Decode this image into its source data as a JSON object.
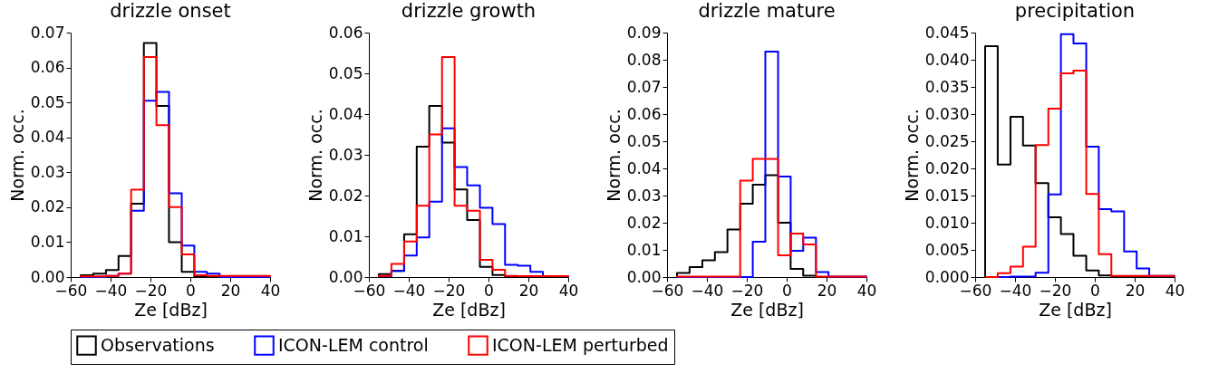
{
  "chart_data": [
    {
      "type": "histogram",
      "title": "drizzle onset",
      "xlabel": "Ze [dBz]",
      "ylabel": "Norm. occ.",
      "legend": "bottom",
      "grid": false,
      "bins": [
        -55,
        -48.7,
        -42.3,
        -36,
        -29.7,
        -23.3,
        -17,
        -10.7,
        -4.3,
        2,
        8.3,
        14.7,
        21,
        27.3,
        33.7,
        40
      ],
      "xlim": [
        -60,
        40
      ],
      "xticks": [
        {
          "value": -60,
          "label": "−60"
        },
        {
          "value": -40,
          "label": "−40"
        },
        {
          "value": -20,
          "label": "−20"
        },
        0,
        20,
        40
      ],
      "ylim": [
        0,
        0.07
      ],
      "yticks": [
        {
          "value": 0,
          "label": "0.00"
        },
        0.01,
        0.02,
        0.03,
        0.04,
        0.05,
        0.06,
        0.07
      ],
      "series": [
        {
          "name": "Observations",
          "color": "#000000",
          "values": [
            0.0005,
            0.001,
            0.002,
            0.006,
            0.021,
            0.067,
            0.049,
            0.01,
            0.0015,
            0,
            0,
            0,
            0,
            0,
            0
          ]
        },
        {
          "name": "ICON-LEM control",
          "color": "#0000ff",
          "values": [
            0,
            0,
            0.0003,
            0.001,
            0.019,
            0.0505,
            0.053,
            0.024,
            0.009,
            0.0015,
            0.001,
            0,
            0,
            0,
            0
          ]
        },
        {
          "name": "ICON-LEM perturbed",
          "color": "#ff0000",
          "values": [
            0.0002,
            0.0002,
            0.0003,
            0.001,
            0.025,
            0.063,
            0.0435,
            0.02,
            0.0065,
            0.0005,
            0.0003,
            0.0003,
            0.0003,
            0.0003,
            0.0003
          ]
        }
      ]
    },
    {
      "type": "histogram",
      "title": "drizzle growth",
      "xlabel": "Ze [dBz]",
      "ylabel": "Norm. occ.",
      "legend": "bottom",
      "grid": false,
      "bins": [
        -55,
        -48.7,
        -42.3,
        -36,
        -29.7,
        -23.3,
        -17,
        -10.7,
        -4.3,
        2,
        8.3,
        14.7,
        21,
        27.3,
        33.7,
        40
      ],
      "xlim": [
        -60,
        40
      ],
      "xticks": [
        {
          "value": -60,
          "label": "−60"
        },
        {
          "value": -40,
          "label": "−40"
        },
        {
          "value": -20,
          "label": "−20"
        },
        0,
        20,
        40
      ],
      "ylim": [
        0,
        0.06
      ],
      "yticks": [
        {
          "value": 0,
          "label": "0.00"
        },
        0.01,
        0.02,
        0.03,
        0.04,
        0.05,
        0.06
      ],
      "series": [
        {
          "name": "Observations",
          "color": "#000000",
          "values": [
            0.0007,
            0.0015,
            0.0105,
            0.032,
            0.042,
            0.033,
            0.0215,
            0.014,
            0.0025,
            0.0005,
            0,
            0,
            0,
            0,
            0
          ]
        },
        {
          "name": "ICON-LEM control",
          "color": "#0000ff",
          "values": [
            0.0002,
            0.0015,
            0.0053,
            0.0097,
            0.0185,
            0.0365,
            0.027,
            0.0225,
            0.017,
            0.013,
            0.003,
            0.0028,
            0.0013,
            0.0002,
            0.0002
          ]
        },
        {
          "name": "ICON-LEM perturbed",
          "color": "#ff0000",
          "values": [
            0.0003,
            0.0032,
            0.0087,
            0.0175,
            0.035,
            0.054,
            0.0175,
            0.0163,
            0.0042,
            0.0018,
            0.0003,
            0.0002,
            0.0002,
            0.0002,
            0.0002
          ]
        }
      ]
    },
    {
      "type": "histogram",
      "title": "drizzle mature",
      "xlabel": "Ze [dBz]",
      "ylabel": "Norm. occ.",
      "legend": "bottom",
      "grid": false,
      "bins": [
        -55,
        -48.7,
        -42.3,
        -36,
        -29.7,
        -23.3,
        -17,
        -10.7,
        -4.3,
        2,
        8.3,
        14.7,
        21,
        27.3,
        33.7,
        40
      ],
      "xlim": [
        -60,
        40
      ],
      "xticks": [
        {
          "value": -60,
          "label": "−60"
        },
        {
          "value": -40,
          "label": "−40"
        },
        {
          "value": -20,
          "label": "−20"
        },
        0,
        20,
        40
      ],
      "ylim": [
        0,
        0.09
      ],
      "yticks": [
        {
          "value": 0,
          "label": "0.00"
        },
        0.01,
        0.02,
        0.03,
        0.04,
        0.05,
        0.06,
        0.07,
        0.08,
        0.09
      ],
      "series": [
        {
          "name": "Observations",
          "color": "#000000",
          "values": [
            0.0015,
            0.0037,
            0.0062,
            0.0092,
            0.0175,
            0.027,
            0.034,
            0.0375,
            0.02,
            0.003,
            0.0005,
            0,
            0,
            0,
            0
          ]
        },
        {
          "name": "ICON-LEM control",
          "color": "#0000ff",
          "values": [
            0,
            0,
            0,
            0,
            0,
            0,
            0.013,
            0.083,
            0.037,
            0.0097,
            0.0145,
            0.0018,
            0.0002,
            0.0002,
            0.0002
          ]
        },
        {
          "name": "ICON-LEM perturbed",
          "color": "#ff0000",
          "values": [
            0.0002,
            0.0002,
            0.0002,
            0.0002,
            0.0002,
            0.0355,
            0.0435,
            0.0435,
            0.008,
            0.016,
            0.012,
            0.0002,
            0.0002,
            0.0002,
            0.0002
          ]
        }
      ]
    },
    {
      "type": "histogram",
      "title": "precipitation",
      "xlabel": "Ze [dBz]",
      "ylabel": "Norm. occ.",
      "legend": "bottom",
      "grid": false,
      "bins": [
        -55,
        -48.7,
        -42.3,
        -36,
        -29.7,
        -23.3,
        -17,
        -10.7,
        -4.3,
        2,
        8.3,
        14.7,
        21,
        27.3,
        33.7,
        40
      ],
      "xlim": [
        -60,
        40
      ],
      "xticks": [
        {
          "value": -60,
          "label": "−60"
        },
        {
          "value": -40,
          "label": "−40"
        },
        {
          "value": -20,
          "label": "−20"
        },
        0,
        20,
        40
      ],
      "ylim": [
        0,
        0.045
      ],
      "yticks": [
        {
          "value": 0,
          "label": "0.000"
        },
        {
          "value": 0.005,
          "label": "0.005"
        },
        {
          "value": 0.01,
          "label": "0.010"
        },
        {
          "value": 0.015,
          "label": "0.015"
        },
        {
          "value": 0.02,
          "label": "0.020"
        },
        {
          "value": 0.025,
          "label": "0.025"
        },
        {
          "value": 0.03,
          "label": "0.030"
        },
        {
          "value": 0.035,
          "label": "0.035"
        },
        {
          "value": 0.04,
          "label": "0.040"
        },
        {
          "value": 0.045,
          "label": "0.045"
        }
      ],
      "series": [
        {
          "name": "Observations",
          "color": "#000000",
          "values": [
            0.0425,
            0.0207,
            0.0295,
            0.0242,
            0.0173,
            0.011,
            0.0079,
            0.0039,
            0.0012,
            0.0003,
            0.0001,
            0,
            0,
            0,
            0
          ]
        },
        {
          "name": "ICON-LEM control",
          "color": "#0000ff",
          "values": [
            0,
            0,
            0.0001,
            0.0001,
            0.0008,
            0.0152,
            0.0447,
            0.043,
            0.024,
            0.0125,
            0.0121,
            0.0047,
            0.0016,
            0.0002,
            0.0002
          ]
        },
        {
          "name": "ICON-LEM perturbed",
          "color": "#ff0000",
          "values": [
            0,
            0.0007,
            0.0019,
            0.0056,
            0.0243,
            0.031,
            0.0375,
            0.038,
            0.0153,
            0.0042,
            0.0002,
            0.0002,
            0.0002,
            0.0002,
            0.0002
          ]
        }
      ]
    }
  ]
}
